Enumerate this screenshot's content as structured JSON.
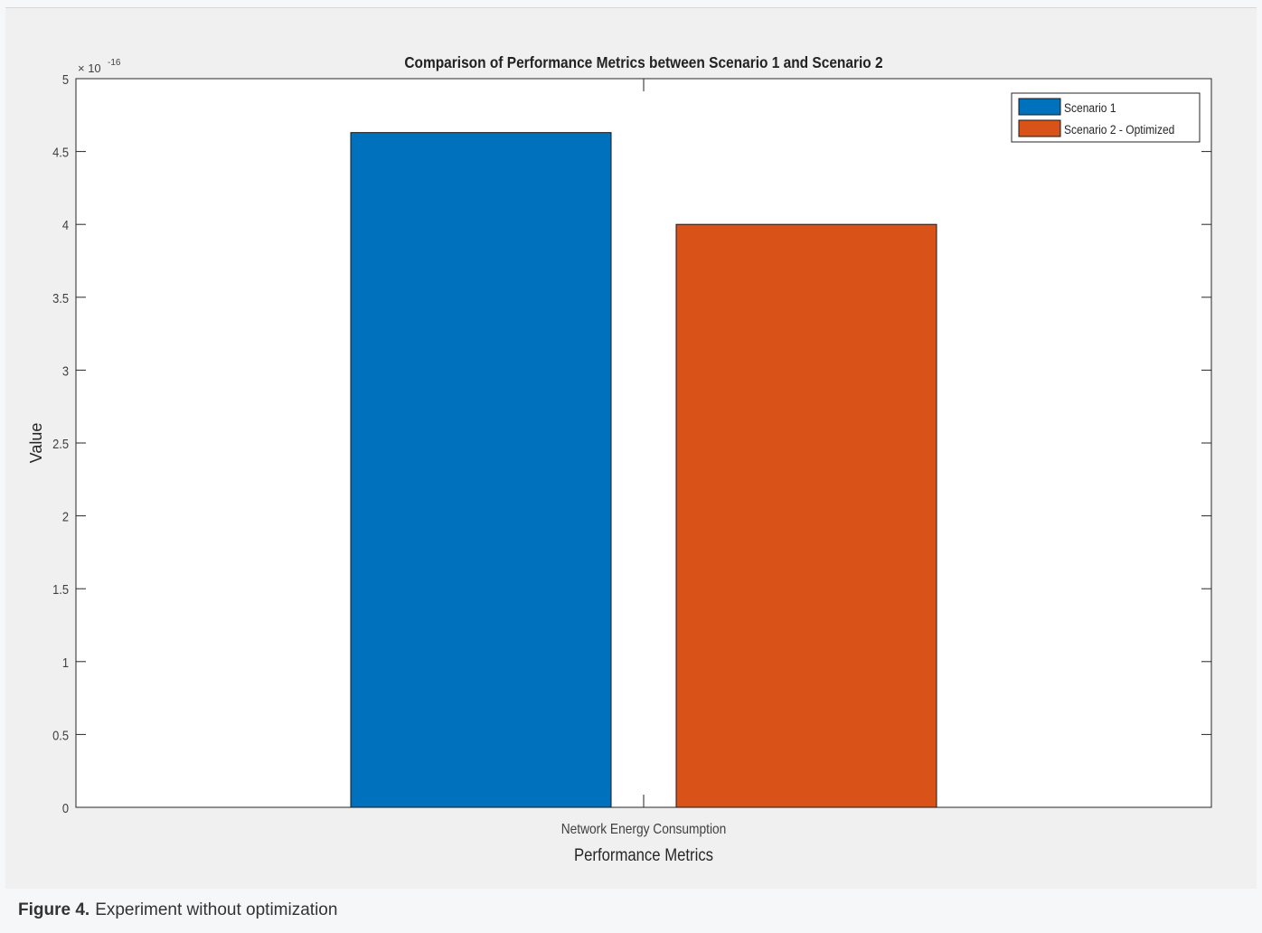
{
  "figure": {
    "caption_label": "Figure 4.",
    "caption_text": "Experiment without optimization"
  },
  "colors": {
    "scenario1": "#0072bd",
    "scenario2": "#d95319"
  },
  "chart_data": {
    "type": "bar",
    "title": "Comparison of Performance Metrics between Scenario 1 and Scenario 2",
    "xlabel": "Performance Metrics",
    "ylabel": "Value",
    "y_multiplier_label": "× 10",
    "y_multiplier_exponent": "-16",
    "categories": [
      "Network Energy Consumption"
    ],
    "ylim": [
      0,
      5
    ],
    "yticks": [
      0,
      0.5,
      1,
      1.5,
      2,
      2.5,
      3,
      3.5,
      4,
      4.5,
      5
    ],
    "ytick_labels": [
      "0",
      "0.5",
      "1",
      "1.5",
      "2",
      "2.5",
      "3",
      "3.5",
      "4",
      "4.5",
      "5"
    ],
    "grid": false,
    "legend_position": "top-right",
    "series": [
      {
        "name": "Scenario 1",
        "values": [
          4.63
        ]
      },
      {
        "name": "Scenario 2 - Optimized",
        "values": [
          4.0
        ]
      }
    ]
  }
}
